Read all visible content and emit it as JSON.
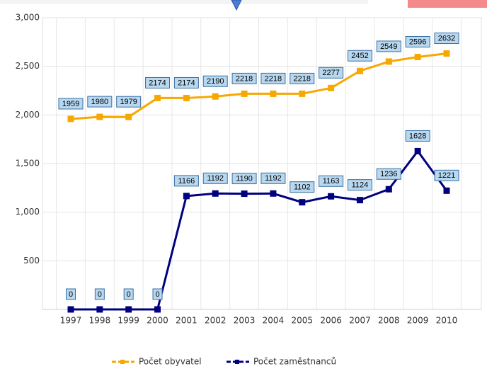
{
  "chart_data": {
    "type": "line",
    "categories": [
      "1997",
      "1998",
      "1999",
      "2000",
      "2001",
      "2002",
      "2003",
      "2004",
      "2005",
      "2006",
      "2007",
      "2008",
      "2009",
      "2010"
    ],
    "series": [
      {
        "name": "Počet obyvatel",
        "color": "#f7a800",
        "values": [
          1959,
          1980,
          1979,
          2174,
          2174,
          2190,
          2218,
          2218,
          2218,
          2277,
          2452,
          2549,
          2596,
          2632
        ]
      },
      {
        "name": "Počet zaměstnanců",
        "color": "#000080",
        "values": [
          0,
          0,
          0,
          0,
          1166,
          1192,
          1190,
          1192,
          1102,
          1163,
          1124,
          1236,
          1628,
          1221
        ]
      }
    ],
    "ylim": [
      0,
      3000
    ],
    "yticks": [
      {
        "value": 500,
        "label": "500"
      },
      {
        "value": 1000,
        "label": "1,000"
      },
      {
        "value": 1500,
        "label": "1,500"
      },
      {
        "value": 2000,
        "label": "2,000"
      },
      {
        "value": 2500,
        "label": "2,500"
      },
      {
        "value": 3000,
        "label": "3,000"
      }
    ],
    "grid": true
  }
}
